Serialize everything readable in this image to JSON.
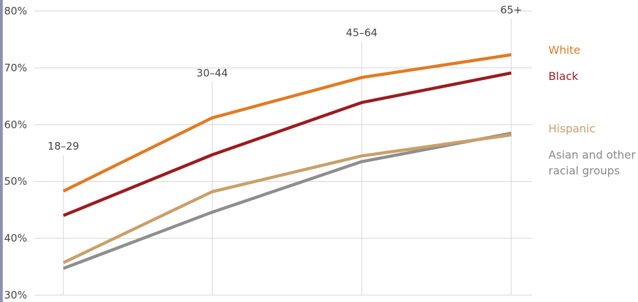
{
  "chart_data": {
    "type": "line",
    "categories": [
      "18–29",
      "30–44",
      "45–64",
      "65+"
    ],
    "yticks": [
      "30%",
      "40%",
      "50%",
      "60%",
      "70%",
      "80%"
    ],
    "ylim": [
      30,
      80
    ],
    "grid": true,
    "legend_placement": "right",
    "series": [
      {
        "name": "White",
        "values": [
          48.3,
          61.2,
          68.3,
          72.3
        ],
        "color": "#e07b24"
      },
      {
        "name": "Black",
        "values": [
          44.0,
          54.7,
          63.9,
          69.1
        ],
        "color": "#9a1c1f"
      },
      {
        "name": "Hispanic",
        "values": [
          35.7,
          48.2,
          54.5,
          58.2
        ],
        "color": "#c8a06a"
      },
      {
        "name": "Asian and other racial groups",
        "values": [
          34.7,
          44.6,
          53.5,
          58.5
        ],
        "color": "#8e8e8e"
      }
    ],
    "legend_lines": {
      "Asian and other racial groups": [
        "Asian and other",
        "racial groups"
      ]
    }
  }
}
